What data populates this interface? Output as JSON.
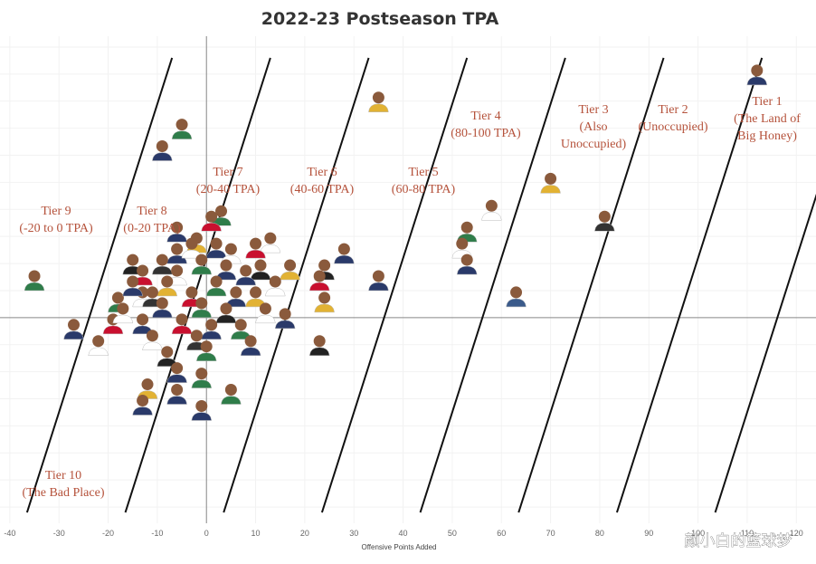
{
  "chart_data": {
    "type": "scatter",
    "title": "2022-23 Postseason TPA",
    "xlabel": "Offensive Points Added",
    "ylabel": "",
    "xlim": [
      -42,
      124
    ],
    "ylim": [
      -38,
      52
    ],
    "x_ticks": [
      -40,
      -30,
      -20,
      -10,
      0,
      10,
      20,
      30,
      40,
      50,
      60,
      70,
      80,
      90,
      100,
      110,
      120
    ],
    "tier_line_offsets": [
      -20,
      0,
      20,
      40,
      60,
      80,
      100,
      120
    ],
    "tiers": [
      {
        "lines": [
          "Tier 1",
          "(The Land of",
          "Big Honey)"
        ]
      },
      {
        "lines": [
          "Tier 2",
          "(Unoccupied)"
        ]
      },
      {
        "lines": [
          "Tier 3",
          "(Also",
          "Unoccupied)"
        ]
      },
      {
        "lines": [
          "Tier 4",
          "(80-100 TPA)"
        ]
      },
      {
        "lines": [
          "Tier 5",
          "(60-80 TPA)"
        ]
      },
      {
        "lines": [
          "Tier 6",
          "(40-60 TPA)"
        ]
      },
      {
        "lines": [
          "Tier 7",
          "(20-40 TPA)"
        ]
      },
      {
        "lines": [
          "Tier 8",
          "(0-20 TPA)"
        ]
      },
      {
        "lines": [
          "Tier 9",
          "(-20 to 0 TPA)"
        ]
      },
      {
        "lines": [
          "Tier 10",
          "(The Bad Place)"
        ]
      }
    ],
    "points": [
      {
        "x": 112,
        "y": 45,
        "jersey": "#2a3a6a"
      },
      {
        "x": 35,
        "y": 40,
        "jersey": "#e2b233"
      },
      {
        "x": -5,
        "y": 35,
        "jersey": "#2f7d4a"
      },
      {
        "x": -9,
        "y": 31,
        "jersey": "#2a3a6a"
      },
      {
        "x": 70,
        "y": 25,
        "jersey": "#e2b233"
      },
      {
        "x": 58,
        "y": 20,
        "jersey": "#ffffff"
      },
      {
        "x": 81,
        "y": 18,
        "jersey": "#333333"
      },
      {
        "x": 53,
        "y": 16,
        "jersey": "#2f7d4a"
      },
      {
        "x": 52,
        "y": 13,
        "jersey": "#ffffff"
      },
      {
        "x": 53,
        "y": 10,
        "jersey": "#2a3a6a"
      },
      {
        "x": 63,
        "y": 4,
        "jersey": "#3a5a8a"
      },
      {
        "x": -35,
        "y": 7,
        "jersey": "#2f7d4a"
      },
      {
        "x": 3,
        "y": 19,
        "jersey": "#2f7d4a"
      },
      {
        "x": 1,
        "y": 18,
        "jersey": "#c9102f"
      },
      {
        "x": -6,
        "y": 16,
        "jersey": "#2a3a6a"
      },
      {
        "x": -2,
        "y": 14,
        "jersey": "#e2b233"
      },
      {
        "x": 13,
        "y": 14,
        "jersey": "#ffffff"
      },
      {
        "x": 28,
        "y": 12,
        "jersey": "#2a3a6a"
      },
      {
        "x": -15,
        "y": 10,
        "jersey": "#222222"
      },
      {
        "x": 24,
        "y": 9,
        "jersey": "#222222"
      },
      {
        "x": 35,
        "y": 7,
        "jersey": "#2a3a6a"
      },
      {
        "x": 23,
        "y": 7,
        "jersey": "#c9102f"
      },
      {
        "x": -18,
        "y": 3,
        "jersey": "#2f7d4a"
      },
      {
        "x": -13,
        "y": 4,
        "jersey": "#ffffff"
      },
      {
        "x": 24,
        "y": 3,
        "jersey": "#e2b233"
      },
      {
        "x": -27,
        "y": -2,
        "jersey": "#2a3a6a"
      },
      {
        "x": -22,
        "y": -5,
        "jersey": "#ffffff"
      },
      {
        "x": 23,
        "y": -5,
        "jersey": "#222222"
      },
      {
        "x": -19,
        "y": -1,
        "jersey": "#c9102f"
      },
      {
        "x": 16,
        "y": 0,
        "jersey": "#2a3a6a"
      },
      {
        "x": -6,
        "y": 12,
        "jersey": "#2a3a6a"
      },
      {
        "x": -3,
        "y": 13,
        "jersey": "#ffffff"
      },
      {
        "x": 2,
        "y": 13,
        "jersey": "#2a3a6a"
      },
      {
        "x": 10,
        "y": 13,
        "jersey": "#c9102f"
      },
      {
        "x": 5,
        "y": 12,
        "jersey": "#ffffff"
      },
      {
        "x": -9,
        "y": 10,
        "jersey": "#333333"
      },
      {
        "x": -1,
        "y": 10,
        "jersey": "#2f7d4a"
      },
      {
        "x": 4,
        "y": 9,
        "jersey": "#2a3a6a"
      },
      {
        "x": 11,
        "y": 9,
        "jersey": "#222222"
      },
      {
        "x": 17,
        "y": 9,
        "jersey": "#e2b233"
      },
      {
        "x": -13,
        "y": 8,
        "jersey": "#c9102f"
      },
      {
        "x": -6,
        "y": 8,
        "jersey": "#ffffff"
      },
      {
        "x": 8,
        "y": 8,
        "jersey": "#2a3a6a"
      },
      {
        "x": -15,
        "y": 6,
        "jersey": "#2a3a6a"
      },
      {
        "x": -8,
        "y": 6,
        "jersey": "#e2b233"
      },
      {
        "x": 2,
        "y": 6,
        "jersey": "#2f7d4a"
      },
      {
        "x": 14,
        "y": 6,
        "jersey": "#ffffff"
      },
      {
        "x": -11,
        "y": 4,
        "jersey": "#333333"
      },
      {
        "x": -3,
        "y": 4,
        "jersey": "#c9102f"
      },
      {
        "x": 6,
        "y": 4,
        "jersey": "#2a3a6a"
      },
      {
        "x": 10,
        "y": 4,
        "jersey": "#e2b233"
      },
      {
        "x": -17,
        "y": 1,
        "jersey": "#ffffff"
      },
      {
        "x": -9,
        "y": 2,
        "jersey": "#2a3a6a"
      },
      {
        "x": -1,
        "y": 2,
        "jersey": "#2f7d4a"
      },
      {
        "x": 4,
        "y": 1,
        "jersey": "#222222"
      },
      {
        "x": 12,
        "y": 1,
        "jersey": "#ffffff"
      },
      {
        "x": -13,
        "y": -1,
        "jersey": "#2a3a6a"
      },
      {
        "x": -5,
        "y": -1,
        "jersey": "#c9102f"
      },
      {
        "x": 1,
        "y": -2,
        "jersey": "#2a3a6a"
      },
      {
        "x": 7,
        "y": -2,
        "jersey": "#2f7d4a"
      },
      {
        "x": -11,
        "y": -4,
        "jersey": "#ffffff"
      },
      {
        "x": -2,
        "y": -4,
        "jersey": "#333333"
      },
      {
        "x": 9,
        "y": -5,
        "jersey": "#2a3a6a"
      },
      {
        "x": -8,
        "y": -7,
        "jersey": "#222222"
      },
      {
        "x": 0,
        "y": -6,
        "jersey": "#2f7d4a"
      },
      {
        "x": -6,
        "y": -10,
        "jersey": "#2a3a6a"
      },
      {
        "x": -1,
        "y": -11,
        "jersey": "#2f7d4a"
      },
      {
        "x": -12,
        "y": -13,
        "jersey": "#e2b233"
      },
      {
        "x": -6,
        "y": -14,
        "jersey": "#2a3a6a"
      },
      {
        "x": 5,
        "y": -14,
        "jersey": "#2f7d4a"
      },
      {
        "x": -13,
        "y": -16,
        "jersey": "#2a3a6a"
      },
      {
        "x": -1,
        "y": -17,
        "jersey": "#2a3a6a"
      }
    ]
  },
  "watermark": "颜小白的篮球梦"
}
